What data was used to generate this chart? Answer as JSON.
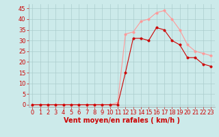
{
  "title": "",
  "xlabel": "Vent moyen/en rafales ( km/h )",
  "ylabel": "",
  "background_color": "#cceaea",
  "grid_color": "#aacccc",
  "x_ticks": [
    0,
    1,
    2,
    3,
    4,
    5,
    6,
    7,
    8,
    9,
    10,
    11,
    12,
    13,
    14,
    15,
    16,
    17,
    18,
    19,
    20,
    21,
    22,
    23
  ],
  "y_ticks": [
    0,
    5,
    10,
    15,
    20,
    25,
    30,
    35,
    40,
    45
  ],
  "xlim": [
    -0.5,
    23.5
  ],
  "ylim": [
    -1,
    47
  ],
  "line1_x": [
    0,
    1,
    2,
    3,
    4,
    5,
    6,
    7,
    8,
    9,
    10,
    11,
    12,
    13,
    14,
    15,
    16,
    17,
    18,
    19,
    20,
    21,
    22,
    23
  ],
  "line1_y": [
    0,
    0,
    0,
    0,
    0,
    0,
    0,
    0,
    0,
    0,
    0,
    0,
    15,
    31,
    31,
    30,
    36,
    35,
    30,
    28,
    22,
    22,
    19,
    18
  ],
  "line1_color": "#cc0000",
  "line2_x": [
    0,
    1,
    2,
    3,
    4,
    5,
    6,
    7,
    8,
    9,
    10,
    11,
    12,
    13,
    14,
    15,
    16,
    17,
    18,
    19,
    20,
    21,
    22,
    23
  ],
  "line2_y": [
    0,
    0,
    0,
    0,
    0,
    0,
    0,
    0,
    0,
    0,
    0,
    1,
    33,
    34,
    39,
    40,
    43,
    44,
    40,
    35,
    28,
    25,
    24,
    23
  ],
  "line2_color": "#ff9999",
  "marker_size": 2.5,
  "xlabel_color": "#cc0000",
  "tick_color": "#cc0000",
  "axis_color": "#999999",
  "xlabel_fontsize": 7,
  "tick_fontsize": 6
}
